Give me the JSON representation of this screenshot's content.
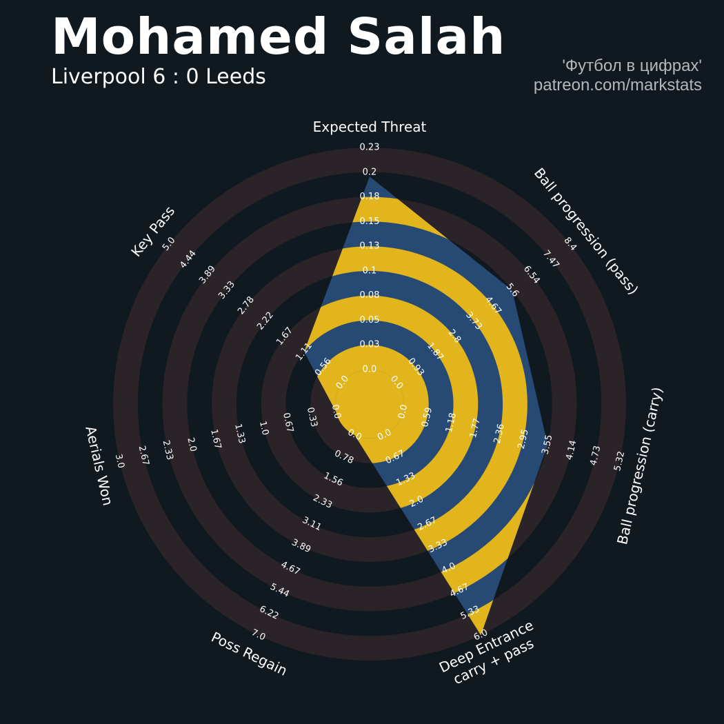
{
  "header": {
    "title": "Mohamed Salah",
    "subtitle": "Liverpool 6 : 0 Leeds",
    "credit_line1": "'Футбол в цифрах'",
    "credit_line2": "patreon.com/markstats"
  },
  "colors": {
    "background": "#101820",
    "outer_ring": "#2a2328",
    "polygon_blue": "#274a74",
    "polygon_gold": "#e3b51c",
    "text": "#ffffff"
  },
  "chart_data": {
    "type": "radar",
    "grid": true,
    "legend": "none",
    "params": [
      {
        "name": "Expected Threat",
        "ticks": [
          "0.0",
          "0.03",
          "0.05",
          "0.08",
          "0.1",
          "0.13",
          "0.15",
          "0.18",
          "0.2",
          "0.23"
        ],
        "min": 0,
        "max": 0.23,
        "value": 0.2
      },
      {
        "name": "Ball progression (pass)",
        "ticks": [
          "0.0",
          "0.93",
          "1.87",
          "2.8",
          "3.73",
          "4.67",
          "5.6",
          "6.54",
          "7.47",
          "8.4"
        ],
        "min": 0,
        "max": 8.4,
        "value": 5.6
      },
      {
        "name": "Ball progression (carry)",
        "ticks": [
          "0.0",
          "0.59",
          "1.18",
          "1.77",
          "2.36",
          "2.95",
          "3.55",
          "4.14",
          "4.73",
          "5.32"
        ],
        "min": 0,
        "max": 5.32,
        "value": 3.55
      },
      {
        "name": "Deep Entrance\ncarry + pass",
        "ticks": [
          "0.0",
          "0.67",
          "1.33",
          "2.0",
          "2.67",
          "3.33",
          "4.0",
          "4.67",
          "5.33",
          "6.0"
        ],
        "min": 0,
        "max": 6.0,
        "value": 6.0
      },
      {
        "name": "Poss Regain",
        "ticks": [
          "0.0",
          "0.78",
          "1.56",
          "2.33",
          "3.11",
          "3.89",
          "4.67",
          "5.44",
          "6.22",
          "7.0"
        ],
        "min": 0,
        "max": 7.0,
        "value": 0.0
      },
      {
        "name": "Aerials Won",
        "ticks": [
          "0.0",
          "0.33",
          "0.67",
          "1.0",
          "1.33",
          "1.67",
          "2.0",
          "2.33",
          "2.67",
          "3.0"
        ],
        "min": 0,
        "max": 3.0,
        "value": 0.0
      },
      {
        "name": "Key Pass",
        "ticks": [
          "0.0",
          "0.56",
          "1.11",
          "1.67",
          "2.22",
          "2.78",
          "3.33",
          "3.89",
          "4.44",
          "5.0"
        ],
        "min": 0,
        "max": 5.0,
        "value": 1.11
      }
    ]
  }
}
